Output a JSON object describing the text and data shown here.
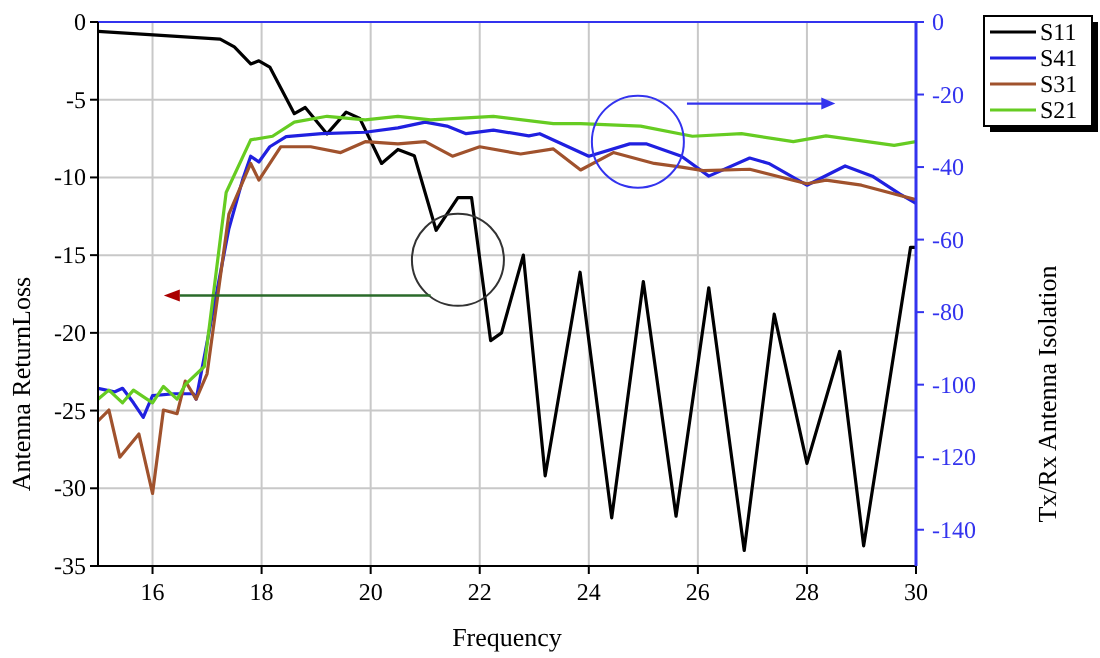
{
  "chart_data": {
    "type": "line",
    "xlabel": "Frequency",
    "ylabel": "Antenna ReturnLoss",
    "y2label": "Tx/Rx Antenna Isolation",
    "xlim": [
      15,
      30
    ],
    "xticks": [
      16,
      18,
      20,
      22,
      24,
      26,
      28,
      30
    ],
    "ylim": [
      -35,
      0
    ],
    "yticks": [
      -35,
      -30,
      -25,
      -20,
      -15,
      -10,
      -5,
      0
    ],
    "y2lim": [
      -150,
      0
    ],
    "y2ticks": [
      -140,
      -120,
      -100,
      -80,
      -60,
      -40,
      -20,
      0
    ],
    "grid": true,
    "legend": "top right",
    "line_style": "solid",
    "series": [
      {
        "name": "S11",
        "color": "#000000",
        "x": [
          15,
          17.24,
          17.5,
          17.8,
          17.95,
          18.15,
          18.6,
          18.8,
          19.2,
          19.55,
          19.8,
          20.2,
          20.5,
          20.8,
          21.2,
          21.6,
          21.85,
          22.2,
          22.4,
          22.8,
          23.2,
          23.84,
          24.42,
          25.0,
          25.6,
          26.2,
          26.85,
          27.4,
          28.0,
          28.6,
          29.04,
          29.9,
          30
        ],
        "values": [
          -0.6,
          -1.1,
          -1.6,
          -2.7,
          -2.5,
          -2.9,
          -5.9,
          -5.5,
          -7.2,
          -5.8,
          -6.2,
          -9.1,
          -8.2,
          -8.6,
          -13.4,
          -11.3,
          -11.3,
          -20.5,
          -20,
          -15,
          -29.2,
          -16.1,
          -31.9,
          -16.7,
          -31.8,
          -17.1,
          -34,
          -18.8,
          -28.4,
          -21.2,
          -33.7,
          -14.5,
          -14.5
        ]
      },
      {
        "name": "S41",
        "color": "#2020e0",
        "axis": "y2",
        "x": [
          15,
          15.3,
          15.45,
          15.65,
          15.83,
          16.0,
          16.4,
          16.75,
          16.8,
          17.4,
          17.65,
          17.8,
          17.95,
          18.15,
          18.45,
          19.1,
          19.9,
          20.5,
          21.0,
          21.4,
          21.75,
          22.25,
          22.9,
          23.1,
          24.0,
          24.75,
          25.05,
          25.7,
          26.2,
          26.95,
          27.3,
          28.0,
          28.7,
          29.2,
          29.7,
          30
        ],
        "values": [
          -101,
          -102,
          -101,
          -105,
          -109,
          -103,
          -102.5,
          -102.5,
          -104,
          -57,
          -43.6,
          -37,
          -38.6,
          -34.4,
          -31.6,
          -30.8,
          -30.4,
          -29.2,
          -27.6,
          -28.7,
          -30.8,
          -29.8,
          -31.4,
          -30.8,
          -37,
          -33.6,
          -33.6,
          -37,
          -42.5,
          -37.5,
          -39,
          -45,
          -39.7,
          -42.5,
          -47.4,
          -50
        ]
      },
      {
        "name": "S31",
        "color": "#a0522d",
        "axis": "y2",
        "x": [
          15,
          15.2,
          15.4,
          15.75,
          16.0,
          16.2,
          16.45,
          16.6,
          16.8,
          17.0,
          17.4,
          17.8,
          17.95,
          18.35,
          18.9,
          19.45,
          19.9,
          20.5,
          21.0,
          21.5,
          22.0,
          22.75,
          23.35,
          23.85,
          24.45,
          25.2,
          25.7,
          26.1,
          26.95,
          28.0,
          28.35,
          29.0,
          30
        ],
        "values": [
          -110,
          -107,
          -120,
          -113.6,
          -130,
          -107,
          -108,
          -99,
          -104,
          -97,
          -53,
          -39,
          -43.6,
          -34.4,
          -34.4,
          -36,
          -33,
          -33.6,
          -33,
          -37,
          -34.4,
          -36.4,
          -35,
          -40.8,
          -36,
          -39,
          -40,
          -41,
          -40.6,
          -44.6,
          -43.6,
          -45,
          -49
        ]
      },
      {
        "name": "S21",
        "color": "#66cc22",
        "axis": "y2",
        "x": [
          15,
          15.2,
          15.45,
          15.65,
          16.0,
          16.2,
          16.45,
          16.6,
          16.95,
          17.35,
          17.8,
          18.2,
          18.6,
          19.2,
          19.9,
          20.5,
          21.1,
          22.25,
          23.35,
          23.85,
          24.95,
          25.9,
          26.8,
          27.75,
          28.35,
          29.6,
          30
        ],
        "values": [
          -104,
          -101.5,
          -105,
          -101.5,
          -105,
          -100.5,
          -104,
          -100,
          -95,
          -47,
          -32.5,
          -31.5,
          -27.6,
          -26,
          -27,
          -26,
          -27,
          -26,
          -28,
          -28,
          -28.7,
          -31.5,
          -30.8,
          -33,
          -31.4,
          -34,
          -33
        ]
      }
    ]
  }
}
